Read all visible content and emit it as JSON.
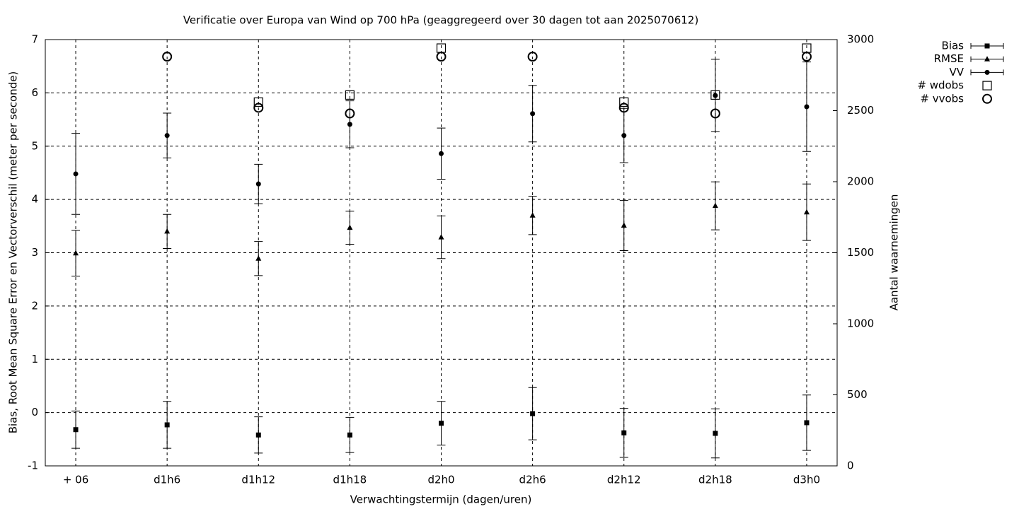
{
  "chart_data": {
    "type": "errorbar",
    "title": "Verificatie over Europa van Wind op 700 hPa (geaggregeerd over 30 dagen tot aan 2025070612)",
    "xlabel": "Verwachtingstermijn (dagen/uren)",
    "ylabel": "Bias, Root Mean Square Error en Vectorverschil (meter per seconde)",
    "y2label": "Aantal waarnemingen",
    "categories": [
      "+ 06",
      "d1h6",
      "d1h12",
      "d1h18",
      "d2h0",
      "d2h6",
      "d2h12",
      "d2h18",
      "d3h0"
    ],
    "ylim": [
      -1,
      7
    ],
    "yticks": [
      -1,
      0,
      1,
      2,
      3,
      4,
      5,
      6,
      7
    ],
    "y2lim": [
      0,
      3000
    ],
    "y2ticks": [
      0,
      500,
      1000,
      1500,
      2000,
      2500,
      3000
    ],
    "grid": true,
    "legend": "outside-top-right",
    "series": [
      {
        "name": "Bias",
        "color": "#000000",
        "marker": "square",
        "values": [
          -0.32,
          -0.23,
          -0.42,
          -0.42,
          -0.2,
          -0.02,
          -0.38,
          -0.39,
          -0.19
        ],
        "errors": [
          0.35,
          0.44,
          0.34,
          0.33,
          0.41,
          0.49,
          0.46,
          0.46,
          0.52
        ]
      },
      {
        "name": "RMSE",
        "color": "#000000",
        "marker": "triangle",
        "values": [
          2.99,
          3.4,
          2.89,
          3.47,
          3.29,
          3.7,
          3.51,
          3.88,
          3.76
        ],
        "errors": [
          0.43,
          0.32,
          0.32,
          0.31,
          0.4,
          0.36,
          0.47,
          0.45,
          0.53
        ]
      },
      {
        "name": "VV",
        "color": "#000000",
        "marker": "circle",
        "values": [
          4.48,
          5.2,
          4.29,
          5.41,
          4.86,
          5.61,
          5.2,
          5.95,
          5.74
        ],
        "errors": [
          0.76,
          0.42,
          0.37,
          0.44,
          0.48,
          0.53,
          0.51,
          0.68,
          0.84
        ]
      },
      {
        "name": "# wdobs",
        "color": "#000000",
        "marker": "open-square",
        "axis": "y2",
        "values": [
          null,
          null,
          2560,
          2610,
          2940,
          null,
          2560,
          2610,
          2940
        ]
      },
      {
        "name": "# vvobs",
        "color": "#000000",
        "marker": "open-circle",
        "axis": "y2",
        "values": [
          null,
          2880,
          2520,
          2480,
          2880,
          2880,
          2520,
          2480,
          2880
        ]
      }
    ]
  }
}
